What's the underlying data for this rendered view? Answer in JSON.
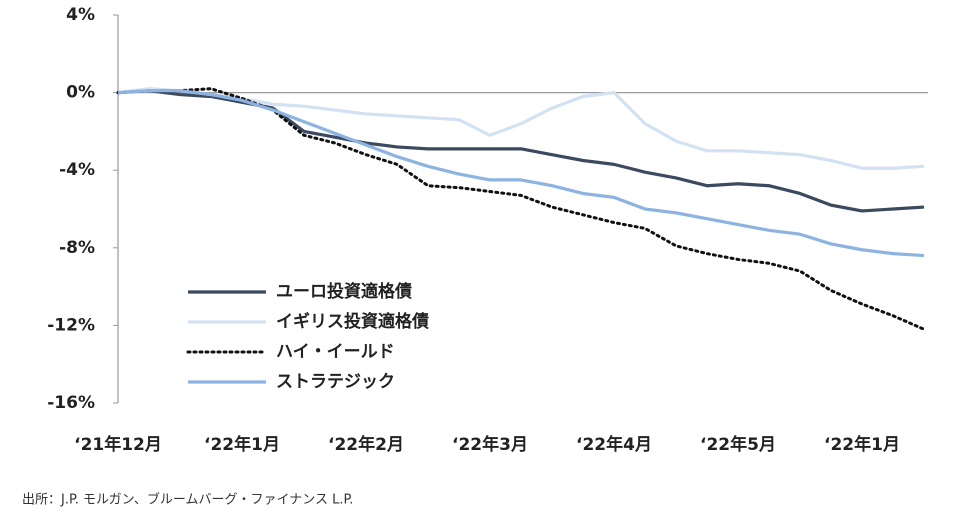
{
  "chart_data": {
    "type": "line",
    "categories": [
      "‘21年12月",
      null,
      null,
      null,
      "‘22年1月",
      null,
      null,
      null,
      "‘22年2月",
      null,
      null,
      null,
      "‘22年3月",
      null,
      null,
      null,
      "‘22年4月",
      null,
      null,
      null,
      "‘22年5月",
      null,
      null,
      null,
      "‘22年1月",
      null,
      null
    ],
    "series": [
      {
        "name": "ユーロ投資適格債",
        "color": "#3b4a5e",
        "dash": "solid",
        "values": [
          0,
          0.1,
          -0.1,
          -0.2,
          -0.5,
          -0.8,
          -2.0,
          -2.3,
          -2.6,
          -2.8,
          -2.9,
          -2.9,
          -2.9,
          -2.9,
          -3.2,
          -3.5,
          -3.7,
          -4.1,
          -4.4,
          -4.8,
          -4.7,
          -4.8,
          -5.2,
          -5.8,
          -6.1,
          -6.0,
          -5.9
        ]
      },
      {
        "name": "イギリス投資適格債",
        "color": "#d3e2f3",
        "dash": "solid",
        "values": [
          0,
          0.2,
          0.1,
          -0.1,
          -0.3,
          -0.6,
          -0.7,
          -0.9,
          -1.1,
          -1.2,
          -1.3,
          -1.4,
          -2.2,
          -1.6,
          -0.8,
          -0.2,
          0.0,
          -1.6,
          -2.5,
          -3.0,
          -3.0,
          -3.1,
          -3.2,
          -3.5,
          -3.9,
          -3.9,
          -3.8
        ]
      },
      {
        "name": "ハイ・イールド",
        "color": "#111111",
        "dash": "dotted",
        "values": [
          0,
          0.1,
          0.1,
          0.2,
          -0.3,
          -0.9,
          -2.2,
          -2.6,
          -3.2,
          -3.7,
          -4.8,
          -4.9,
          -5.1,
          -5.3,
          -5.9,
          -6.3,
          -6.7,
          -7.0,
          -7.9,
          -8.3,
          -8.6,
          -8.8,
          -9.2,
          -10.2,
          -10.9,
          -11.5,
          -12.2
        ]
      },
      {
        "name": "ストラテジック",
        "color": "#8db3e2",
        "dash": "solid",
        "values": [
          0,
          0.1,
          0.1,
          -0.1,
          -0.4,
          -0.9,
          -1.5,
          -2.1,
          -2.7,
          -3.3,
          -3.8,
          -4.2,
          -4.5,
          -4.5,
          -4.8,
          -5.2,
          -5.4,
          -6.0,
          -6.2,
          -6.5,
          -6.8,
          -7.1,
          -7.3,
          -7.8,
          -8.1,
          -8.3,
          -8.4
        ]
      }
    ],
    "ylim": [
      -16,
      4
    ],
    "yticks": [
      {
        "value": 4,
        "label": "4%"
      },
      {
        "value": 0,
        "label": "0%"
      },
      {
        "value": -4,
        "label": "-4%"
      },
      {
        "value": -8,
        "label": "-8%"
      },
      {
        "value": -12,
        "label": "-12%"
      },
      {
        "value": -16,
        "label": "-16%"
      }
    ],
    "source": "出所：J.P. モルガン、ブルームバーグ・ファイナンス L.P."
  }
}
